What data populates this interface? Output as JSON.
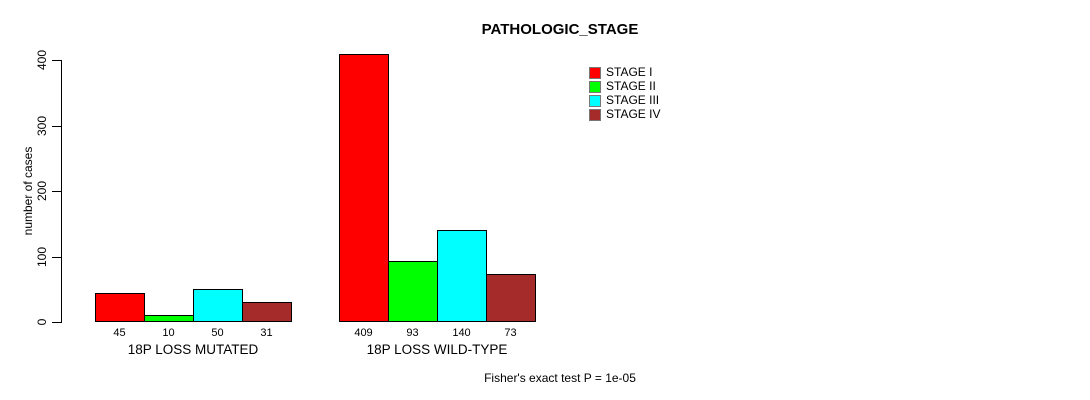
{
  "chart_data": {
    "type": "bar",
    "title": "PATHOLOGIC_STAGE",
    "ylabel": "number of cases",
    "footnote": "Fisher's exact test P = 1e-05",
    "ylim": [
      0,
      400
    ],
    "yticks": [
      0,
      100,
      200,
      300,
      400
    ],
    "grid": false,
    "legend_position": "top-right-inside",
    "bar_value_labels": true,
    "categories": [
      "18P LOSS MUTATED",
      "18P LOSS WILD-TYPE"
    ],
    "series": [
      {
        "name": "STAGE I",
        "color": "#FF0000",
        "values": [
          45,
          409
        ]
      },
      {
        "name": "STAGE II",
        "color": "#00FF00",
        "values": [
          10,
          93
        ]
      },
      {
        "name": "STAGE III",
        "color": "#00FFFF",
        "values": [
          50,
          140
        ]
      },
      {
        "name": "STAGE IV",
        "color": "#A52A2A",
        "values": [
          31,
          73
        ]
      }
    ]
  }
}
